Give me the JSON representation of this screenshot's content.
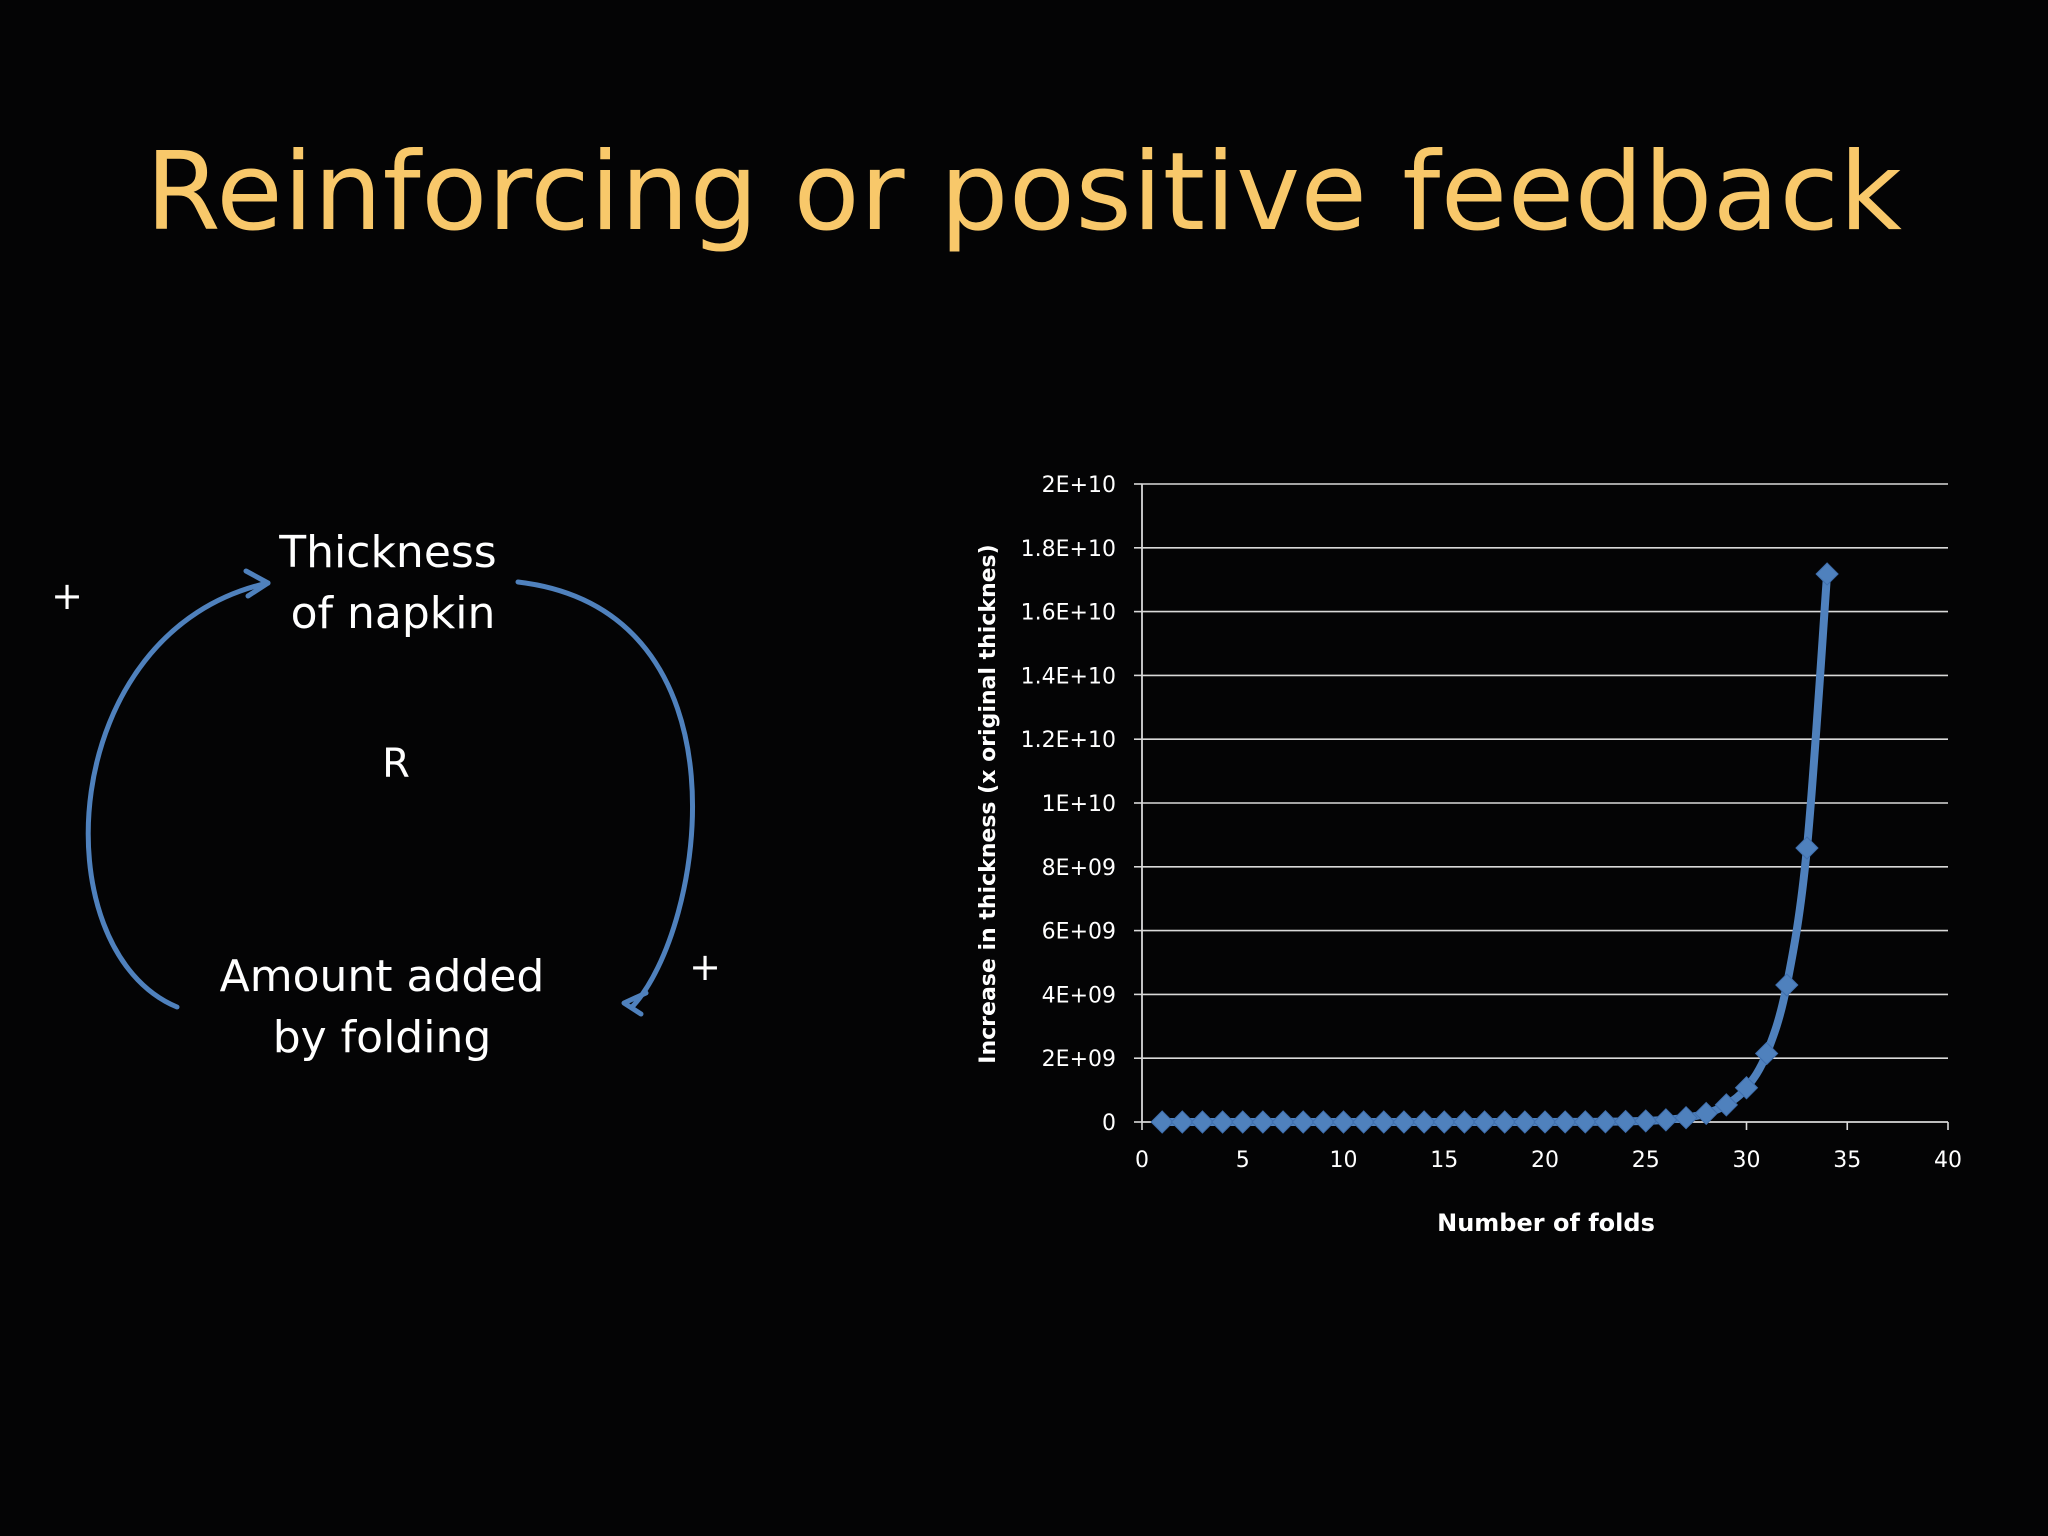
{
  "slide": {
    "title": "Reinforcing or positive feedback",
    "title_color": "#f8c86a",
    "background_color": "#040405"
  },
  "loop_diagram": {
    "top_variable": {
      "line1": "Thickness",
      "line2": "of napkin"
    },
    "bottom_variable": {
      "line1": "Amount added",
      "line2": "by folding"
    },
    "loop_label": "R",
    "left_polarity": "+",
    "right_polarity": "+",
    "arrow_color": "#4f81bd"
  },
  "chart_data": {
    "type": "line",
    "title": "",
    "xlabel": "Number of folds",
    "ylabel": "Increase in thickness (x original thicknes)",
    "xlim": [
      0,
      40
    ],
    "ylim": [
      0,
      20000000000
    ],
    "x_ticks": [
      0,
      5,
      10,
      15,
      20,
      25,
      30,
      35,
      40
    ],
    "x_tick_labels": [
      "0",
      "5",
      "10",
      "15",
      "20",
      "25",
      "30",
      "35",
      "40"
    ],
    "y_ticks": [
      0,
      2000000000,
      4000000000,
      6000000000,
      8000000000,
      10000000000,
      12000000000,
      14000000000,
      16000000000,
      18000000000,
      20000000000
    ],
    "y_tick_labels": [
      "0",
      "2E+09",
      "4E+09",
      "6E+09",
      "8E+09",
      "1E+10",
      "1.2E+10",
      "1.4E+10",
      "1.6E+10",
      "1.8E+10",
      "2E+10"
    ],
    "grid": true,
    "legend": "none",
    "series": [
      {
        "name": "Increase in thickness",
        "color": "#4f81bd",
        "marker": "diamond",
        "x": [
          1,
          2,
          3,
          4,
          5,
          6,
          7,
          8,
          9,
          10,
          11,
          12,
          13,
          14,
          15,
          16,
          17,
          18,
          19,
          20,
          21,
          22,
          23,
          24,
          25,
          26,
          27,
          28,
          29,
          30,
          31,
          32,
          33,
          34
        ],
        "y": [
          2,
          4,
          8,
          16,
          32,
          64,
          128,
          256,
          512,
          1024,
          2048,
          4096,
          8192,
          16384,
          32768,
          65536,
          131072,
          262144,
          524288,
          1048576,
          2097152,
          4194304,
          8388608,
          16777216,
          33554432,
          67108864,
          134217728,
          268435456,
          536870912,
          1073741824,
          2147483648,
          4294967296,
          8589934592,
          17179869184
        ]
      }
    ]
  }
}
